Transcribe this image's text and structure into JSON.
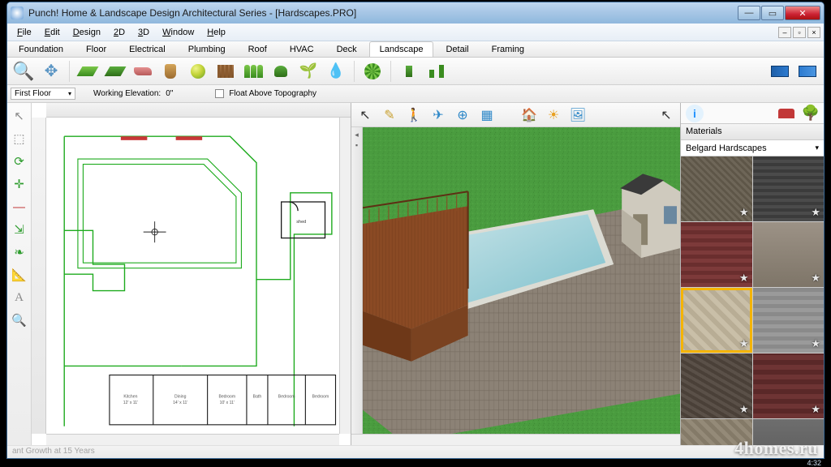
{
  "app": {
    "title": "Punch! Home & Landscape Design Architectural Series - [Hardscapes.PRO]"
  },
  "menu": [
    "File",
    "Edit",
    "Design",
    "2D",
    "3D",
    "Window",
    "Help"
  ],
  "tabs": {
    "items": [
      "Foundation",
      "Floor",
      "Electrical",
      "Plumbing",
      "Roof",
      "HVAC",
      "Deck",
      "Landscape",
      "Detail",
      "Framing"
    ],
    "active": "Landscape"
  },
  "toolbar2": {
    "floor": "First Floor",
    "elev_label": "Working Elevation:",
    "elev_value": "0\"",
    "float_label": "Float Above Topography"
  },
  "materials": {
    "header": "Materials",
    "category": "Belgard Hardscapes",
    "swatches": [
      {
        "bg": "repeating-linear-gradient(45deg,#6e6658 0 3px,#5e5648 3px 6px)",
        "star": true
      },
      {
        "bg": "repeating-linear-gradient(0deg,#4b4b4b 0 4px,#3b3b3b 4px 8px),repeating-linear-gradient(90deg,#4b4b4b 0 4px,#3b3b3b 4px 8px)",
        "star": true
      },
      {
        "bg": "repeating-linear-gradient(0deg,#7d3a3a 0 5px,#6a2e2e 5px 10px)",
        "star": true
      },
      {
        "bg": "linear-gradient(#9c9286,#7e7568)",
        "star": true
      },
      {
        "bg": "repeating-linear-gradient(45deg,#c9bfa8 0 6px,#b8ad95 6px 12px)",
        "star": true,
        "selected": true
      },
      {
        "bg": "repeating-linear-gradient(0deg,#9a9a9a 0 5px,#8a8a8a 5px 10px)",
        "star": true
      },
      {
        "bg": "repeating-linear-gradient(30deg,#5a5048 0 4px,#4a4038 4px 8px)",
        "star": true
      },
      {
        "bg": "repeating-linear-gradient(0deg,#6e3434 0 6px,#5a2828 6px 12px)",
        "star": true
      },
      {
        "bg": "repeating-linear-gradient(45deg,#948a78 0 5px,#847a68 5px 10px)",
        "star": true
      },
      {
        "bg": "linear-gradient(#6e6e6e,#545454)",
        "star": true
      }
    ]
  },
  "view3d": {
    "grass_color": "#4a9c3f",
    "pool_water": "#a2d4dc",
    "pool_rim": "#dcdcd4",
    "deck_color": "#8a4a24",
    "deck_shadow": "#5e2f14",
    "paver_color": "#8c8276",
    "shed_wall": "#cfcabe",
    "shed_roof": "#4a4a4a",
    "shed_door": "#8a826e"
  },
  "view2d": {
    "outline_color": "#1eab1e",
    "room_line": "#1a1a1a",
    "anchor_color": "#c83838"
  },
  "status": "ant Growth at 15 Years",
  "watermark": "4homes.ru",
  "time": "4:32"
}
